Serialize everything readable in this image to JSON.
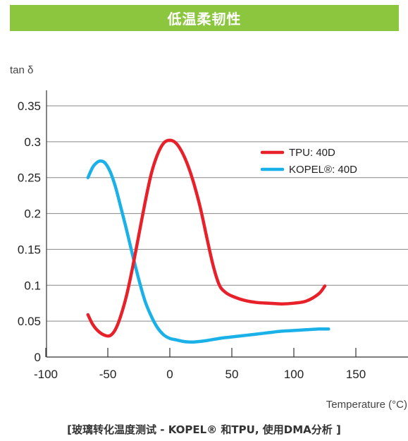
{
  "header": {
    "title": "低温柔韧性",
    "color": "#8cc63f"
  },
  "caption": "[玻璃转化温度测试 - KOPEL® 和TPU, 使用DMA分析 ]",
  "chart_data": {
    "type": "line",
    "title": "",
    "ylabel": "tan δ",
    "xlabel": "Temperature (°C)",
    "xlim": [
      -100,
      150
    ],
    "ylim": [
      0,
      0.35
    ],
    "x_ticks": [
      -100,
      -50,
      0,
      50,
      100,
      150
    ],
    "x_tick_labels": [
      "-100",
      "-50",
      "0",
      "50",
      "100",
      "150"
    ],
    "y_ticks": [
      0,
      0.05,
      0.1,
      0.15,
      0.2,
      0.25,
      0.3,
      0.35
    ],
    "y_tick_labels": [
      "0",
      "0.05",
      "0.1",
      "0.15",
      "0.2",
      "0.25",
      "0.3",
      "0.35"
    ],
    "grid": "horizontal",
    "legend_position": "top-right",
    "series": [
      {
        "name": "TPU: 40D",
        "color": "#e8202a",
        "x": [
          -66,
          -62,
          -57,
          -52,
          -48,
          -44,
          -40,
          -35,
          -30,
          -25,
          -20,
          -15,
          -10,
          -5,
          0,
          5,
          10,
          15,
          20,
          25,
          30,
          35,
          40,
          45,
          50,
          60,
          70,
          80,
          90,
          100,
          110,
          120,
          125
        ],
        "y": [
          0.059,
          0.045,
          0.035,
          0.03,
          0.03,
          0.038,
          0.055,
          0.085,
          0.125,
          0.17,
          0.215,
          0.255,
          0.282,
          0.298,
          0.302,
          0.298,
          0.285,
          0.265,
          0.238,
          0.205,
          0.165,
          0.127,
          0.1,
          0.09,
          0.085,
          0.079,
          0.076,
          0.075,
          0.074,
          0.075,
          0.078,
          0.088,
          0.099
        ]
      },
      {
        "name": "KOPEL®: 40D",
        "color": "#1ab0e8",
        "x": [
          -66,
          -62,
          -58,
          -55,
          -52,
          -48,
          -44,
          -40,
          -35,
          -30,
          -25,
          -20,
          -15,
          -10,
          -5,
          0,
          5,
          10,
          15,
          20,
          30,
          40,
          50,
          60,
          70,
          80,
          90,
          100,
          110,
          120,
          128
        ],
        "y": [
          0.25,
          0.265,
          0.272,
          0.273,
          0.27,
          0.258,
          0.238,
          0.212,
          0.178,
          0.142,
          0.108,
          0.078,
          0.057,
          0.041,
          0.031,
          0.026,
          0.024,
          0.022,
          0.021,
          0.021,
          0.023,
          0.026,
          0.028,
          0.03,
          0.032,
          0.034,
          0.036,
          0.037,
          0.038,
          0.039,
          0.039
        ]
      }
    ]
  }
}
